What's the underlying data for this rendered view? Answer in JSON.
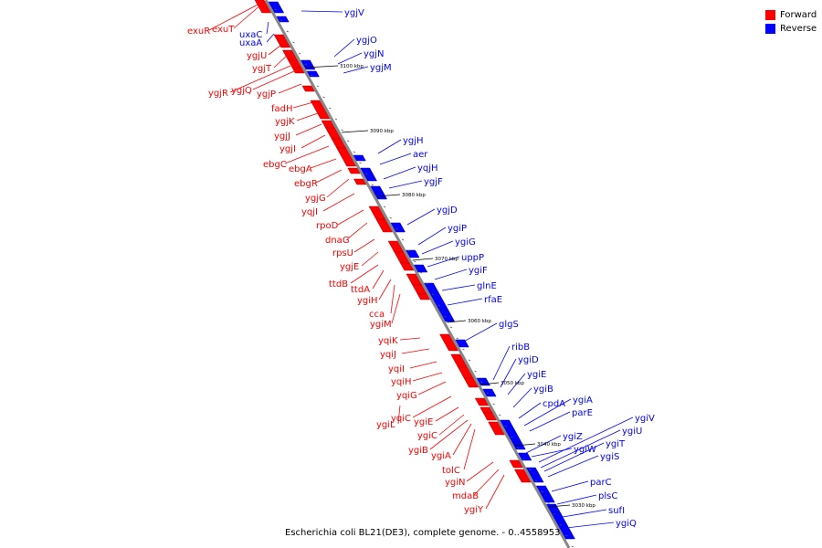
{
  "genome": {
    "caption": "Escherichia coli BL21(DE3), complete genome. - 0..4558953"
  },
  "legend": {
    "items": [
      {
        "label": "Forward",
        "color": "#ff0000"
      },
      {
        "label": "Reverse",
        "color": "#0000ff"
      }
    ]
  },
  "colors": {
    "forward": "#ff0000",
    "reverse": "#0000ff",
    "axis": "#888888"
  },
  "kbp_ticks": [
    "3100 kbp",
    "3090 kbp",
    "3080 kbp",
    "3070 kbp",
    "3060 kbp",
    "3050 kbp",
    "3040 kbp",
    "3030 kbp"
  ],
  "forward_genes": [
    "exuR",
    "exuT",
    "uxaC",
    "uxaA",
    "ygjU",
    "ygjT",
    "ygjR",
    "ygjQ",
    "ygjP",
    "fadH",
    "ygjK",
    "ygjJ",
    "ygjI",
    "ebgC",
    "ebgA",
    "ebgR",
    "ygjG",
    "yqjI",
    "rpoD",
    "dnaG",
    "rpsU",
    "ygjE",
    "ttdB",
    "ttdA",
    "ygiH",
    "cca",
    "ygiM",
    "yqiK",
    "yqiJ",
    "yqiI",
    "yqiH",
    "yqiG",
    "ygiL",
    "yqiC",
    "ygiE",
    "ygiC",
    "ygiB",
    "ygiA",
    "tolC",
    "ygiN",
    "mdaB",
    "ygiY"
  ],
  "reverse_genes": [
    "ygjV",
    "ygjO",
    "ygjN",
    "ygjM",
    "ygjH",
    "aer",
    "yqjH",
    "ygjF",
    "ygjD",
    "ygiP",
    "ygiG",
    "uppP",
    "ygiF",
    "glnE",
    "rfaE",
    "glgS",
    "ribB",
    "ygiD",
    "ygiE",
    "ygiB",
    "cpdA",
    "ygiA",
    "parE",
    "ygiZ",
    "ygiW",
    "ygiV",
    "ygiU",
    "ygiT",
    "ygiS",
    "parC",
    "plsC",
    "sufI",
    "ygiQ"
  ]
}
